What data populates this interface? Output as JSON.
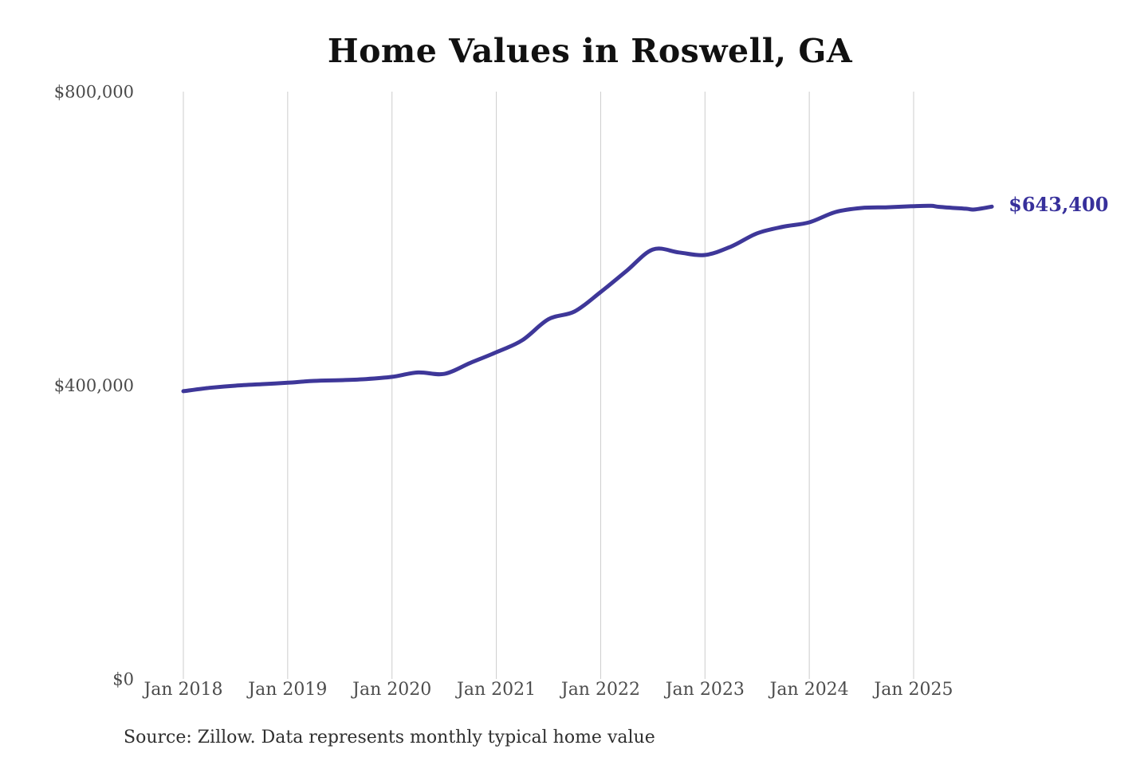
{
  "chart_data": {
    "type": "line",
    "title": "Home Values in Roswell, GA",
    "source_note": "Source: Zillow. Data represents monthly typical home value",
    "xlabel": "",
    "ylabel": "",
    "ylim": [
      0,
      800000
    ],
    "grid": "vertical-only",
    "legend": "none",
    "end_label": "$643,400",
    "y_ticks": [
      {
        "value": 0,
        "label": "$0"
      },
      {
        "value": 400000,
        "label": "$400,000"
      },
      {
        "value": 800000,
        "label": "$800,000"
      }
    ],
    "x_ticks": [
      {
        "month_index": 0,
        "label": "Jan 2018"
      },
      {
        "month_index": 12,
        "label": "Jan 2019"
      },
      {
        "month_index": 24,
        "label": "Jan 2020"
      },
      {
        "month_index": 36,
        "label": "Jan 2021"
      },
      {
        "month_index": 48,
        "label": "Jan 2022"
      },
      {
        "month_index": 60,
        "label": "Jan 2023"
      },
      {
        "month_index": 72,
        "label": "Jan 2024"
      },
      {
        "month_index": 84,
        "label": "Jan 2025"
      }
    ],
    "series": [
      {
        "name": "Monthly typical home value",
        "color": "#3e3799",
        "points": [
          {
            "date": "Jan 2018",
            "m": 0,
            "value": 392000
          },
          {
            "date": "Apr 2018",
            "m": 3,
            "value": 396500
          },
          {
            "date": "Jul 2018",
            "m": 6,
            "value": 399500
          },
          {
            "date": "Oct 2018",
            "m": 9,
            "value": 401500
          },
          {
            "date": "Jan 2019",
            "m": 12,
            "value": 403500
          },
          {
            "date": "Apr 2019",
            "m": 15,
            "value": 406000
          },
          {
            "date": "Jul 2019",
            "m": 18,
            "value": 407000
          },
          {
            "date": "Oct 2019",
            "m": 21,
            "value": 408500
          },
          {
            "date": "Jan 2020",
            "m": 24,
            "value": 411500
          },
          {
            "date": "Apr 2020",
            "m": 27,
            "value": 417500
          },
          {
            "date": "Jul 2020",
            "m": 30,
            "value": 415500
          },
          {
            "date": "Oct 2020",
            "m": 33,
            "value": 430500
          },
          {
            "date": "Jan 2021",
            "m": 36,
            "value": 445000
          },
          {
            "date": "Apr 2021",
            "m": 39,
            "value": 461500
          },
          {
            "date": "Jul 2021",
            "m": 42,
            "value": 490000
          },
          {
            "date": "Oct 2021",
            "m": 45,
            "value": 500500
          },
          {
            "date": "Jan 2022",
            "m": 48,
            "value": 527000
          },
          {
            "date": "Apr 2022",
            "m": 51,
            "value": 556000
          },
          {
            "date": "Jul 2022",
            "m": 54,
            "value": 585000
          },
          {
            "date": "Oct 2022",
            "m": 57,
            "value": 581000
          },
          {
            "date": "Jan 2023",
            "m": 60,
            "value": 577500
          },
          {
            "date": "Apr 2023",
            "m": 63,
            "value": 589000
          },
          {
            "date": "Jul 2023",
            "m": 66,
            "value": 607000
          },
          {
            "date": "Oct 2023",
            "m": 69,
            "value": 616000
          },
          {
            "date": "Jan 2024",
            "m": 72,
            "value": 622000
          },
          {
            "date": "Apr 2024",
            "m": 75,
            "value": 636000
          },
          {
            "date": "Jul 2024",
            "m": 78,
            "value": 641500
          },
          {
            "date": "Oct 2024",
            "m": 81,
            "value": 642500
          },
          {
            "date": "Jan 2025",
            "m": 84,
            "value": 644000
          },
          {
            "date": "Mar 2025",
            "m": 86,
            "value": 644500
          },
          {
            "date": "Apr 2025",
            "m": 87,
            "value": 643000
          },
          {
            "date": "Jul 2025",
            "m": 90,
            "value": 640500
          },
          {
            "date": "Aug 2025",
            "m": 91,
            "value": 639500
          },
          {
            "date": "Oct 2025",
            "m": 93,
            "value": 643400
          }
        ]
      }
    ],
    "style": {
      "background": "#ffffff",
      "accent": "#3e3799",
      "end_label_color": "#37309b",
      "grid_color": "#cccccc",
      "title_color": "#111111",
      "y_label_color": "#4a4a4a",
      "x_label_color": "#4d4d4d",
      "source_color": "#2f2f2f",
      "line_width": 5
    }
  }
}
